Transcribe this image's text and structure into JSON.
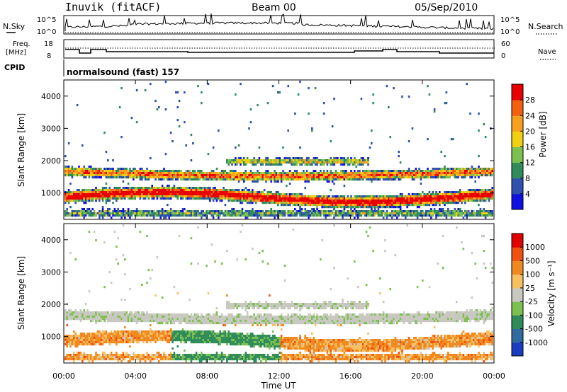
{
  "header": {
    "station": "Inuvik (fitACF)",
    "beam": "Beam 00",
    "date": "05/Sep/2010"
  },
  "panels": {
    "nsky": {
      "left_label": "N.Sky",
      "right_label": "N.Search",
      "left_ticks": [
        "10^5",
        "10^0"
      ],
      "right_ticks": [
        "10^5",
        "10^0"
      ]
    },
    "freq": {
      "left_label_top": "Freq.",
      "left_label_bottom": "[MHz]",
      "right_label": "Nave",
      "left_ticks": [
        "18",
        "8"
      ],
      "right_ticks": [
        "60",
        "0"
      ]
    },
    "cpid": {
      "left_label": "CPID",
      "program": "normalsound (fast) 157"
    }
  },
  "chart_data": [
    {
      "type": "heatmap",
      "name": "power",
      "ylabel": "Slant Range [km]",
      "ylim": [
        180,
        4500
      ],
      "yticks": [
        1000,
        2000,
        3000,
        4000
      ],
      "xlim_hours": [
        0,
        24
      ],
      "colorbar_label": "Power [dB]",
      "colorbar_ticks": [
        4,
        8,
        12,
        16,
        20,
        24,
        28
      ],
      "colorbar_colors": [
        "#1010e0",
        "#3050b0",
        "#2f8c5a",
        "#7cc050",
        "#f0d010",
        "#f7a020",
        "#f26010",
        "#e80000"
      ]
    },
    {
      "type": "heatmap",
      "name": "velocity",
      "ylabel": "Slant Range [km]",
      "xlabel": "Time UT",
      "ylim": [
        180,
        4500
      ],
      "yticks": [
        1000,
        2000,
        3000,
        4000
      ],
      "xticks": [
        "00:00",
        "04:00",
        "08:00",
        "12:00",
        "16:00",
        "20:00",
        "00:00"
      ],
      "colorbar_label": "Velocity [m s⁻¹]",
      "colorbar_ticks": [
        "1000",
        "500",
        "100",
        "25",
        "-25",
        "-100",
        "-500",
        "-1000"
      ],
      "colorbar_colors": [
        "#1a3cc0",
        "#2f6aa0",
        "#2f8c5a",
        "#7cc050",
        "#c8c8c0",
        "#f7c060",
        "#f08a20",
        "#f05010",
        "#e00000"
      ]
    }
  ]
}
